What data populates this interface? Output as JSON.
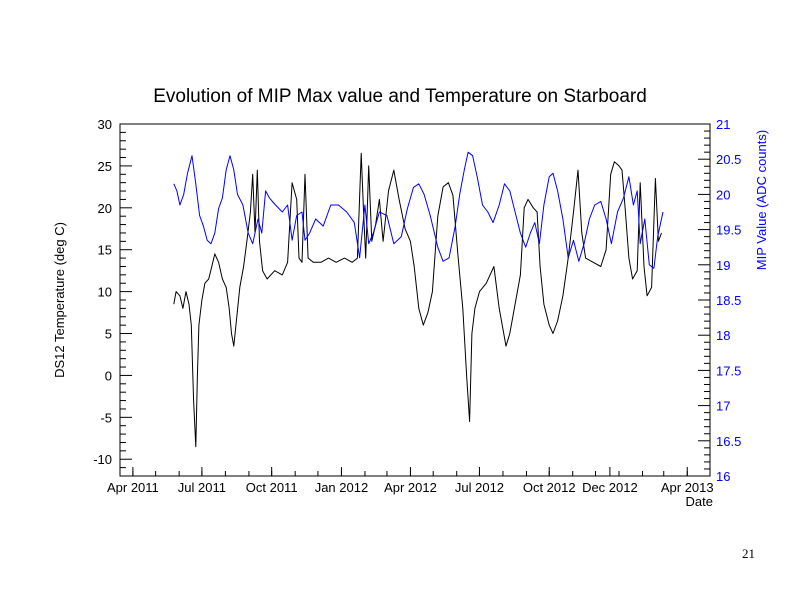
{
  "chart_data": {
    "type": "line",
    "title": "Evolution of MIP Max value and Temperature on Starboard",
    "xlabel": "Date",
    "ylabel_left": "DS12 Temperature (deg C)",
    "ylabel_right": "MIP Value (ADC counts)",
    "xlim": [
      "2011-03-15",
      "2013-05-01"
    ],
    "ylim_left": [
      -12,
      30
    ],
    "ylim_right": [
      16,
      21
    ],
    "x_ticks": [
      {
        "date": "2011-04-01",
        "label": "Apr 2011"
      },
      {
        "date": "2011-07-01",
        "label": "Jul 2011"
      },
      {
        "date": "2011-10-01",
        "label": "Oct 2011"
      },
      {
        "date": "2012-01-01",
        "label": "Jan 2012"
      },
      {
        "date": "2012-04-01",
        "label": "Apr 2012"
      },
      {
        "date": "2012-07-01",
        "label": "Jul 2012"
      },
      {
        "date": "2012-10-01",
        "label": "Oct 2012"
      },
      {
        "date": "2012-12-20",
        "label": "Dec 2012"
      },
      {
        "date": "2013-04-01",
        "label": "Apr 2013"
      }
    ],
    "y_ticks_left": [
      -10,
      -5,
      0,
      5,
      10,
      15,
      20,
      25,
      30
    ],
    "y_ticks_right": [
      16,
      16.5,
      17,
      17.5,
      18,
      18.5,
      19,
      19.5,
      20,
      20.5,
      21
    ],
    "series": [
      {
        "name": "",
        "axis": "left",
        "color": "#000000",
        "points": [
          [
            "2011-05-25",
            8.5
          ],
          [
            "2011-05-28",
            10.0
          ],
          [
            "2011-06-02",
            9.5
          ],
          [
            "2011-06-06",
            8.0
          ],
          [
            "2011-06-10",
            10.0
          ],
          [
            "2011-06-14",
            8.5
          ],
          [
            "2011-06-17",
            6.0
          ],
          [
            "2011-06-20",
            -3.0
          ],
          [
            "2011-06-23",
            -8.5
          ],
          [
            "2011-06-25",
            0.0
          ],
          [
            "2011-06-27",
            6.0
          ],
          [
            "2011-07-01",
            9.0
          ],
          [
            "2011-07-05",
            11.0
          ],
          [
            "2011-07-10",
            11.5
          ],
          [
            "2011-07-14",
            13.0
          ],
          [
            "2011-07-18",
            14.5
          ],
          [
            "2011-07-23",
            13.5
          ],
          [
            "2011-07-28",
            11.5
          ],
          [
            "2011-08-02",
            10.5
          ],
          [
            "2011-08-06",
            8.0
          ],
          [
            "2011-08-09",
            5.0
          ],
          [
            "2011-08-12",
            3.5
          ],
          [
            "2011-08-16",
            7.0
          ],
          [
            "2011-08-20",
            10.5
          ],
          [
            "2011-08-25",
            13.0
          ],
          [
            "2011-08-30",
            16.5
          ],
          [
            "2011-09-03",
            19.5
          ],
          [
            "2011-09-06",
            24.0
          ],
          [
            "2011-09-09",
            17.0
          ],
          [
            "2011-09-12",
            24.5
          ],
          [
            "2011-09-15",
            16.0
          ],
          [
            "2011-09-19",
            12.5
          ],
          [
            "2011-09-25",
            11.5
          ],
          [
            "2011-10-05",
            12.5
          ],
          [
            "2011-10-15",
            12.0
          ],
          [
            "2011-10-22",
            13.5
          ],
          [
            "2011-10-28",
            23.0
          ],
          [
            "2011-11-03",
            21.0
          ],
          [
            "2011-11-06",
            14.0
          ],
          [
            "2011-11-10",
            13.5
          ],
          [
            "2011-11-14",
            24.0
          ],
          [
            "2011-11-18",
            14.0
          ],
          [
            "2011-11-25",
            13.5
          ],
          [
            "2011-12-05",
            13.5
          ],
          [
            "2011-12-15",
            14.0
          ],
          [
            "2011-12-25",
            13.5
          ],
          [
            "2012-01-05",
            14.0
          ],
          [
            "2012-01-15",
            13.5
          ],
          [
            "2012-01-22",
            14.0
          ],
          [
            "2012-01-27",
            26.5
          ],
          [
            "2012-01-30",
            20.0
          ],
          [
            "2012-02-02",
            14.0
          ],
          [
            "2012-02-06",
            25.0
          ],
          [
            "2012-02-10",
            16.0
          ],
          [
            "2012-02-15",
            18.0
          ],
          [
            "2012-02-20",
            21.0
          ],
          [
            "2012-02-25",
            16.0
          ],
          [
            "2012-03-03",
            22.0
          ],
          [
            "2012-03-10",
            24.5
          ],
          [
            "2012-03-17",
            21.0
          ],
          [
            "2012-03-25",
            17.5
          ],
          [
            "2012-04-01",
            16.0
          ],
          [
            "2012-04-06",
            13.0
          ],
          [
            "2012-04-12",
            8.0
          ],
          [
            "2012-04-18",
            6.0
          ],
          [
            "2012-04-24",
            7.5
          ],
          [
            "2012-04-30",
            10.0
          ],
          [
            "2012-05-07",
            19.0
          ],
          [
            "2012-05-14",
            22.5
          ],
          [
            "2012-05-21",
            23.0
          ],
          [
            "2012-05-27",
            21.5
          ],
          [
            "2012-06-03",
            14.0
          ],
          [
            "2012-06-09",
            8.0
          ],
          [
            "2012-06-14",
            0.0
          ],
          [
            "2012-06-18",
            -5.5
          ],
          [
            "2012-06-21",
            5.0
          ],
          [
            "2012-06-25",
            8.0
          ],
          [
            "2012-07-01",
            10.0
          ],
          [
            "2012-07-10",
            11.0
          ],
          [
            "2012-07-20",
            13.0
          ],
          [
            "2012-07-27",
            8.0
          ],
          [
            "2012-08-01",
            5.5
          ],
          [
            "2012-08-05",
            3.5
          ],
          [
            "2012-08-10",
            5.0
          ],
          [
            "2012-08-17",
            8.5
          ],
          [
            "2012-08-24",
            12.0
          ],
          [
            "2012-08-29",
            20.0
          ],
          [
            "2012-09-03",
            21.0
          ],
          [
            "2012-09-10",
            20.0
          ],
          [
            "2012-09-15",
            19.5
          ],
          [
            "2012-09-19",
            13.0
          ],
          [
            "2012-09-24",
            8.5
          ],
          [
            "2012-10-01",
            6.0
          ],
          [
            "2012-10-06",
            5.0
          ],
          [
            "2012-10-12",
            6.5
          ],
          [
            "2012-10-19",
            9.5
          ],
          [
            "2012-10-26",
            14.0
          ],
          [
            "2012-11-02",
            19.5
          ],
          [
            "2012-11-08",
            24.5
          ],
          [
            "2012-11-13",
            17.0
          ],
          [
            "2012-11-18",
            14.0
          ],
          [
            "2012-11-28",
            13.5
          ],
          [
            "2012-12-08",
            13.0
          ],
          [
            "2012-12-15",
            15.0
          ],
          [
            "2012-12-21",
            24.0
          ],
          [
            "2012-12-26",
            25.5
          ],
          [
            "2013-01-01",
            25.0
          ],
          [
            "2013-01-05",
            24.5
          ],
          [
            "2013-01-09",
            20.0
          ],
          [
            "2013-01-14",
            14.0
          ],
          [
            "2013-01-19",
            11.5
          ],
          [
            "2013-01-25",
            12.5
          ],
          [
            "2013-01-29",
            23.0
          ],
          [
            "2013-02-03",
            13.0
          ],
          [
            "2013-02-07",
            9.5
          ],
          [
            "2013-02-13",
            10.5
          ],
          [
            "2013-02-18",
            23.5
          ],
          [
            "2013-02-22",
            16.0
          ],
          [
            "2013-02-26",
            17.0
          ]
        ]
      },
      {
        "name": "",
        "axis": "right",
        "color": "#0000ff",
        "points": [
          [
            "2011-05-25",
            20.15
          ],
          [
            "2011-05-29",
            20.05
          ],
          [
            "2011-06-02",
            19.85
          ],
          [
            "2011-06-07",
            20.0
          ],
          [
            "2011-06-12",
            20.3
          ],
          [
            "2011-06-18",
            20.55
          ],
          [
            "2011-06-23",
            20.15
          ],
          [
            "2011-06-28",
            19.7
          ],
          [
            "2011-07-03",
            19.55
          ],
          [
            "2011-07-08",
            19.35
          ],
          [
            "2011-07-13",
            19.3
          ],
          [
            "2011-07-18",
            19.45
          ],
          [
            "2011-07-23",
            19.8
          ],
          [
            "2011-07-28",
            19.95
          ],
          [
            "2011-08-02",
            20.35
          ],
          [
            "2011-08-07",
            20.55
          ],
          [
            "2011-08-12",
            20.35
          ],
          [
            "2011-08-17",
            20.0
          ],
          [
            "2011-08-24",
            19.85
          ],
          [
            "2011-08-31",
            19.45
          ],
          [
            "2011-09-06",
            19.3
          ],
          [
            "2011-09-13",
            19.65
          ],
          [
            "2011-09-18",
            19.45
          ],
          [
            "2011-09-23",
            20.05
          ],
          [
            "2011-09-28",
            19.95
          ],
          [
            "2011-10-06",
            19.85
          ],
          [
            "2011-10-15",
            19.75
          ],
          [
            "2011-10-22",
            19.85
          ],
          [
            "2011-10-28",
            19.35
          ],
          [
            "2011-11-03",
            19.7
          ],
          [
            "2011-11-10",
            19.75
          ],
          [
            "2011-11-14",
            19.35
          ],
          [
            "2011-11-20",
            19.45
          ],
          [
            "2011-11-28",
            19.65
          ],
          [
            "2011-12-08",
            19.55
          ],
          [
            "2011-12-18",
            19.85
          ],
          [
            "2011-12-28",
            19.85
          ],
          [
            "2012-01-08",
            19.75
          ],
          [
            "2012-01-18",
            19.6
          ],
          [
            "2012-01-25",
            19.1
          ],
          [
            "2012-02-01",
            19.85
          ],
          [
            "2012-02-06",
            19.3
          ],
          [
            "2012-02-12",
            19.45
          ],
          [
            "2012-02-20",
            19.75
          ],
          [
            "2012-03-01",
            19.7
          ],
          [
            "2012-03-10",
            19.3
          ],
          [
            "2012-03-20",
            19.4
          ],
          [
            "2012-03-28",
            19.8
          ],
          [
            "2012-04-05",
            20.1
          ],
          [
            "2012-04-12",
            20.15
          ],
          [
            "2012-04-19",
            20.0
          ],
          [
            "2012-04-27",
            19.7
          ],
          [
            "2012-05-07",
            19.25
          ],
          [
            "2012-05-14",
            19.05
          ],
          [
            "2012-05-22",
            19.1
          ],
          [
            "2012-05-30",
            19.55
          ],
          [
            "2012-06-05",
            20.0
          ],
          [
            "2012-06-11",
            20.35
          ],
          [
            "2012-06-16",
            20.6
          ],
          [
            "2012-06-22",
            20.55
          ],
          [
            "2012-06-28",
            20.25
          ],
          [
            "2012-07-05",
            19.85
          ],
          [
            "2012-07-12",
            19.75
          ],
          [
            "2012-07-19",
            19.6
          ],
          [
            "2012-07-27",
            19.85
          ],
          [
            "2012-08-03",
            20.15
          ],
          [
            "2012-08-10",
            20.05
          ],
          [
            "2012-08-17",
            19.75
          ],
          [
            "2012-08-24",
            19.45
          ],
          [
            "2012-08-31",
            19.25
          ],
          [
            "2012-09-06",
            19.45
          ],
          [
            "2012-09-12",
            19.6
          ],
          [
            "2012-09-18",
            19.3
          ],
          [
            "2012-09-24",
            19.85
          ],
          [
            "2012-10-01",
            20.25
          ],
          [
            "2012-10-06",
            20.3
          ],
          [
            "2012-10-12",
            20.05
          ],
          [
            "2012-10-19",
            19.65
          ],
          [
            "2012-10-26",
            19.1
          ],
          [
            "2012-11-02",
            19.35
          ],
          [
            "2012-11-09",
            19.05
          ],
          [
            "2012-11-16",
            19.3
          ],
          [
            "2012-11-23",
            19.65
          ],
          [
            "2012-11-30",
            19.85
          ],
          [
            "2012-12-08",
            19.9
          ],
          [
            "2012-12-15",
            19.65
          ],
          [
            "2012-12-22",
            19.3
          ],
          [
            "2012-12-30",
            19.75
          ],
          [
            "2013-01-07",
            19.95
          ],
          [
            "2013-01-14",
            20.25
          ],
          [
            "2013-01-20",
            19.85
          ],
          [
            "2013-01-25",
            20.05
          ],
          [
            "2013-01-29",
            19.3
          ],
          [
            "2013-02-04",
            19.65
          ],
          [
            "2013-02-10",
            19.0
          ],
          [
            "2013-02-16",
            18.95
          ],
          [
            "2013-02-21",
            19.4
          ],
          [
            "2013-02-25",
            19.6
          ],
          [
            "2013-02-28",
            19.75
          ]
        ]
      }
    ]
  },
  "slide_number": "21"
}
